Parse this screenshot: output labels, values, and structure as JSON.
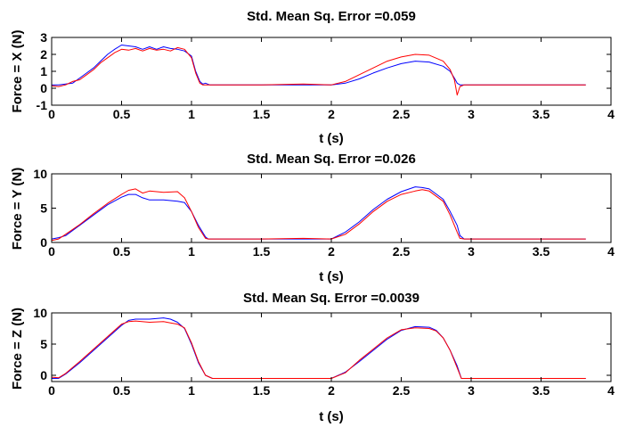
{
  "chart_data": [
    {
      "type": "line",
      "title": "Std. Mean Sq. Error =0.059",
      "xlabel": "t (s)",
      "ylabel": "Force = X (N)",
      "xlim": [
        0,
        4
      ],
      "ylim": [
        -1,
        3
      ],
      "xticks": [
        "0",
        "0.5",
        "1",
        "1.5",
        "2",
        "2.5",
        "3",
        "3.5",
        "4"
      ],
      "yticks": [
        "-1",
        "0",
        "1",
        "2",
        "3"
      ],
      "grid": false,
      "series": [
        {
          "color": "#0000ff",
          "x": [
            0,
            0.05,
            0.1,
            0.15,
            0.2,
            0.25,
            0.3,
            0.35,
            0.4,
            0.45,
            0.5,
            0.55,
            0.6,
            0.65,
            0.7,
            0.75,
            0.8,
            0.85,
            0.9,
            0.95,
            1.0,
            1.03,
            1.06,
            1.08,
            1.1,
            1.13,
            1.2,
            1.5,
            1.8,
            2.0,
            2.1,
            2.2,
            2.3,
            2.4,
            2.5,
            2.6,
            2.7,
            2.8,
            2.85,
            2.88,
            2.9,
            2.92,
            2.95,
            3.0,
            3.5,
            3.82
          ],
          "y": [
            0.2,
            0.2,
            0.25,
            0.3,
            0.6,
            0.9,
            1.2,
            1.6,
            2.0,
            2.3,
            2.55,
            2.5,
            2.45,
            2.3,
            2.45,
            2.3,
            2.45,
            2.35,
            2.3,
            2.2,
            1.9,
            1.0,
            0.4,
            0.25,
            0.3,
            0.2,
            0.2,
            0.2,
            0.2,
            0.2,
            0.3,
            0.55,
            0.9,
            1.2,
            1.45,
            1.6,
            1.55,
            1.3,
            1.0,
            0.6,
            0.3,
            0.2,
            0.2,
            0.2,
            0.2,
            0.2
          ]
        },
        {
          "color": "#ff0000",
          "x": [
            0,
            0.05,
            0.1,
            0.15,
            0.2,
            0.25,
            0.3,
            0.35,
            0.4,
            0.45,
            0.5,
            0.55,
            0.6,
            0.65,
            0.7,
            0.75,
            0.8,
            0.85,
            0.9,
            0.95,
            1.0,
            1.03,
            1.06,
            1.08,
            1.1,
            1.13,
            1.2,
            1.5,
            1.8,
            2.0,
            2.1,
            2.2,
            2.3,
            2.4,
            2.5,
            2.6,
            2.7,
            2.8,
            2.85,
            2.88,
            2.9,
            2.92,
            2.95,
            3.0,
            3.5,
            3.82
          ],
          "y": [
            0.15,
            0.1,
            0.2,
            0.4,
            0.5,
            0.8,
            1.1,
            1.5,
            1.8,
            2.1,
            2.3,
            2.25,
            2.35,
            2.2,
            2.35,
            2.25,
            2.3,
            2.2,
            2.4,
            2.3,
            1.8,
            0.9,
            0.3,
            0.2,
            0.2,
            0.2,
            0.2,
            0.2,
            0.25,
            0.2,
            0.4,
            0.8,
            1.2,
            1.6,
            1.85,
            2.0,
            1.95,
            1.6,
            1.1,
            0.5,
            -0.4,
            0.1,
            0.2,
            0.2,
            0.2,
            0.2
          ]
        }
      ]
    },
    {
      "type": "line",
      "title": "Std. Mean Sq. Error =0.026",
      "xlabel": "t (s)",
      "ylabel": "Force = Y (N)",
      "xlim": [
        0,
        4
      ],
      "ylim": [
        0,
        10
      ],
      "xticks": [
        "0",
        "0.5",
        "1",
        "1.5",
        "2",
        "2.5",
        "3",
        "3.5",
        "4"
      ],
      "yticks": [
        "0",
        "5",
        "10"
      ],
      "grid": false,
      "series": [
        {
          "color": "#0000ff",
          "x": [
            0,
            0.05,
            0.1,
            0.2,
            0.3,
            0.4,
            0.5,
            0.55,
            0.6,
            0.65,
            0.7,
            0.8,
            0.9,
            0.95,
            1.0,
            1.05,
            1.1,
            1.12,
            1.2,
            1.5,
            1.8,
            2.0,
            2.1,
            2.2,
            2.3,
            2.4,
            2.5,
            2.6,
            2.65,
            2.7,
            2.8,
            2.85,
            2.9,
            2.92,
            2.95,
            3.0,
            3.5,
            3.82
          ],
          "y": [
            0.5,
            0.7,
            1.0,
            2.5,
            4.0,
            5.5,
            6.6,
            7.0,
            7.0,
            6.5,
            6.2,
            6.2,
            6.0,
            5.8,
            4.5,
            2.5,
            0.8,
            0.5,
            0.5,
            0.5,
            0.5,
            0.5,
            1.5,
            3.0,
            4.8,
            6.3,
            7.4,
            8.1,
            8.0,
            7.8,
            6.3,
            4.5,
            2.5,
            1.0,
            0.5,
            0.5,
            0.5,
            0.5
          ]
        },
        {
          "color": "#ff0000",
          "x": [
            0,
            0.05,
            0.1,
            0.2,
            0.3,
            0.4,
            0.5,
            0.55,
            0.6,
            0.65,
            0.7,
            0.8,
            0.9,
            0.95,
            1.0,
            1.05,
            1.1,
            1.12,
            1.2,
            1.5,
            1.8,
            2.0,
            2.1,
            2.2,
            2.3,
            2.4,
            2.5,
            2.6,
            2.65,
            2.7,
            2.8,
            2.85,
            2.9,
            2.92,
            2.95,
            3.0,
            3.5,
            3.82
          ],
          "y": [
            0.3,
            0.5,
            1.2,
            2.6,
            4.2,
            5.7,
            7.0,
            7.6,
            7.8,
            7.2,
            7.5,
            7.3,
            7.4,
            6.5,
            4.5,
            2.2,
            0.6,
            0.5,
            0.5,
            0.5,
            0.6,
            0.5,
            1.2,
            2.7,
            4.5,
            6.0,
            7.0,
            7.5,
            7.7,
            7.5,
            6.0,
            4.0,
            1.5,
            0.6,
            0.5,
            0.5,
            0.5,
            0.5
          ]
        }
      ]
    },
    {
      "type": "line",
      "title": "Std. Mean Sq. Error =0.0039",
      "xlabel": "t (s)",
      "ylabel": "Force = Z (N)",
      "xlim": [
        0,
        4
      ],
      "ylim": [
        -1,
        10
      ],
      "xticks": [
        "0",
        "0.5",
        "1",
        "1.5",
        "2",
        "2.5",
        "3",
        "3.5",
        "4"
      ],
      "yticks": [
        "0",
        "5",
        "10"
      ],
      "grid": false,
      "series": [
        {
          "color": "#0000ff",
          "x": [
            0,
            0.05,
            0.1,
            0.2,
            0.3,
            0.4,
            0.5,
            0.55,
            0.6,
            0.7,
            0.8,
            0.85,
            0.9,
            0.95,
            1.0,
            1.05,
            1.1,
            1.15,
            1.2,
            1.5,
            1.8,
            2.0,
            2.1,
            2.2,
            2.3,
            2.4,
            2.5,
            2.6,
            2.7,
            2.75,
            2.8,
            2.85,
            2.9,
            2.93,
            3.0,
            3.5,
            3.82
          ],
          "y": [
            -0.5,
            -0.5,
            0.2,
            2.0,
            4.0,
            6.0,
            8.0,
            8.8,
            9.0,
            9.0,
            9.2,
            9.0,
            8.5,
            7.5,
            5.0,
            2.0,
            0.0,
            -0.5,
            -0.5,
            -0.5,
            -0.5,
            -0.5,
            0.5,
            2.2,
            4.0,
            5.8,
            7.2,
            7.8,
            7.7,
            7.2,
            6.0,
            4.0,
            1.5,
            -0.5,
            -0.5,
            -0.5,
            -0.5
          ]
        },
        {
          "color": "#ff0000",
          "x": [
            0,
            0.05,
            0.1,
            0.2,
            0.3,
            0.4,
            0.5,
            0.55,
            0.6,
            0.7,
            0.8,
            0.85,
            0.9,
            0.95,
            1.0,
            1.05,
            1.1,
            1.15,
            1.2,
            1.5,
            1.8,
            2.0,
            2.1,
            2.2,
            2.3,
            2.4,
            2.5,
            2.6,
            2.7,
            2.75,
            2.8,
            2.85,
            2.9,
            2.93,
            3.0,
            3.5,
            3.82
          ],
          "y": [
            -0.3,
            -0.4,
            0.3,
            2.2,
            4.2,
            6.2,
            8.2,
            8.6,
            8.7,
            8.5,
            8.6,
            8.4,
            8.2,
            7.6,
            5.2,
            2.2,
            0.0,
            -0.5,
            -0.5,
            -0.5,
            -0.5,
            -0.5,
            0.4,
            2.4,
            4.2,
            6.0,
            7.3,
            7.6,
            7.5,
            7.1,
            6.0,
            4.0,
            1.2,
            -0.5,
            -0.5,
            -0.5,
            -0.5
          ]
        }
      ]
    }
  ]
}
